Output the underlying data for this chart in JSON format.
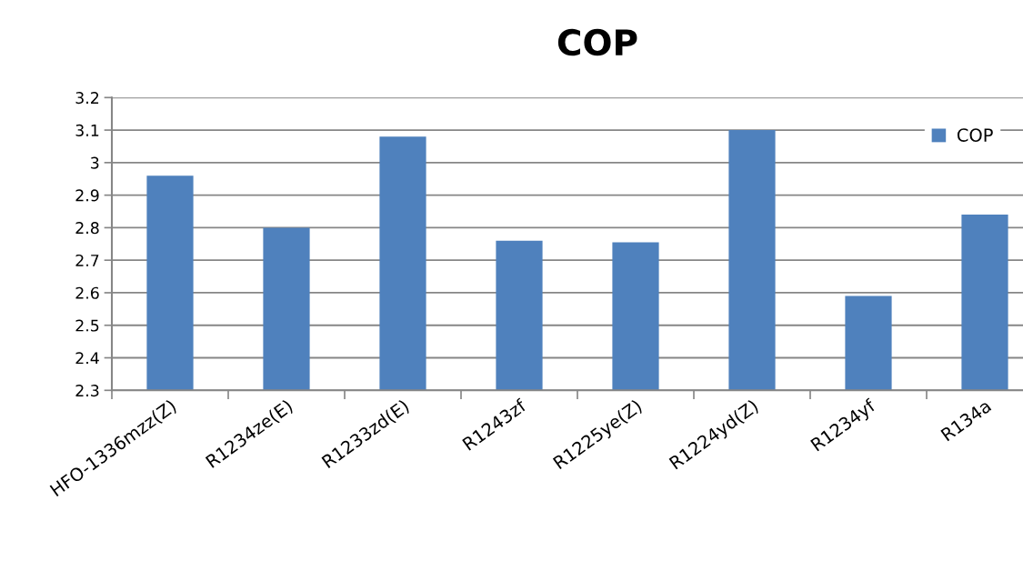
{
  "chart_data": {
    "type": "bar",
    "title": "COP",
    "categories": [
      "HFO-1336mzz(Z)",
      "R1234ze(E)",
      "R1233zd(E)",
      "R1243zf",
      "R1225ye(Z)",
      "R1224yd(Z)",
      "R1234yf",
      "R134a"
    ],
    "series": [
      {
        "name": "COP",
        "color": "#4f81bd",
        "values": [
          2.96,
          2.8,
          3.08,
          2.76,
          2.755,
          3.1,
          2.59,
          2.84
        ]
      }
    ],
    "ylim": [
      2.3,
      3.2
    ],
    "yticks": [
      2.3,
      2.4,
      2.5,
      2.6,
      2.7,
      2.8,
      2.9,
      3,
      3.1,
      3.2
    ],
    "grid": "y",
    "legend": "top right"
  }
}
